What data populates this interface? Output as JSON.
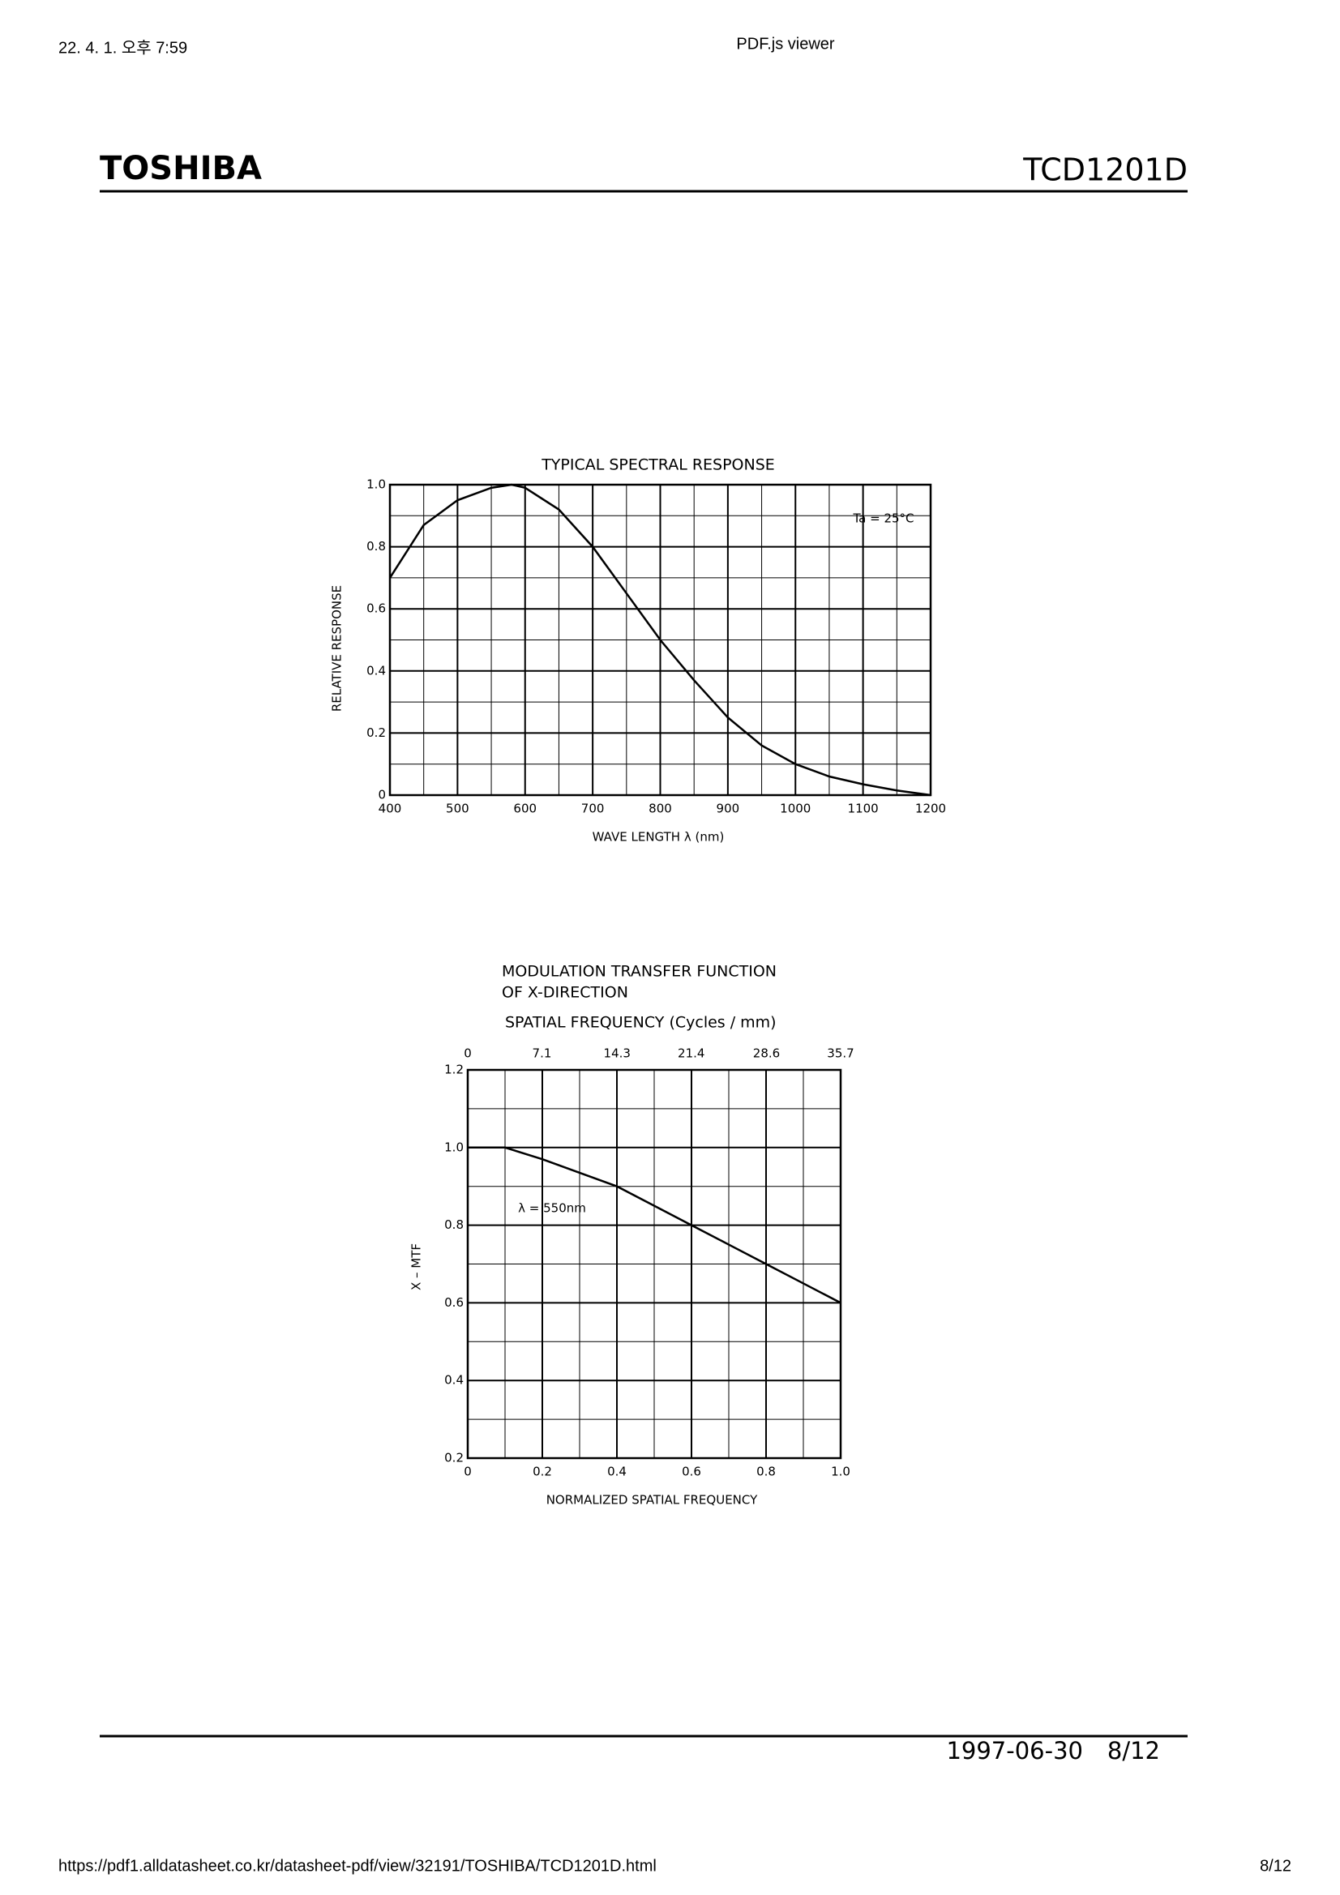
{
  "browser_header": {
    "datetime": "22. 4. 1. 오후 7:59",
    "title": "PDF.js viewer"
  },
  "page_header": {
    "brand": "TOSHIBA",
    "part_number": "TCD1201D"
  },
  "chart_data": [
    {
      "type": "line",
      "title": "TYPICAL SPECTRAL RESPONSE",
      "xlabel": "WAVE LENGTH λ (nm)",
      "ylabel": "RELATIVE RESPONSE",
      "annotation": "Ta = 25°C",
      "x": [
        400,
        450,
        500,
        550,
        580,
        600,
        650,
        700,
        750,
        800,
        850,
        900,
        950,
        1000,
        1050,
        1100,
        1150,
        1200
      ],
      "values": [
        0.7,
        0.87,
        0.95,
        0.99,
        1.0,
        0.99,
        0.92,
        0.8,
        0.65,
        0.5,
        0.37,
        0.25,
        0.16,
        0.1,
        0.06,
        0.035,
        0.015,
        0.0
      ],
      "color": "#000000",
      "xlim": [
        400,
        1200
      ],
      "xticks": [
        400,
        500,
        600,
        700,
        800,
        900,
        1000,
        1100,
        1200
      ],
      "ylim": [
        0,
        1
      ],
      "yticks": [
        0,
        0.2,
        0.4,
        0.6,
        0.8,
        {
          "value": 1,
          "label": "1.0"
        }
      ],
      "grid": true
    },
    {
      "type": "line",
      "title": "MODULATION TRANSFER FUNCTION",
      "subtitle": "OF X-DIRECTION",
      "x2label": "SPATIAL FREQUENCY (Cycles / mm)",
      "xlabel": "NORMALIZED SPATIAL FREQUENCY",
      "ylabel": "X – MTF",
      "annotation": "λ = 550nm",
      "x": [
        0,
        0.1,
        0.2,
        0.3,
        0.4,
        0.5,
        0.6,
        0.7,
        0.8,
        0.9,
        1.0
      ],
      "values": [
        1.0,
        1.0,
        0.97,
        0.935,
        0.9,
        0.85,
        0.8,
        0.75,
        0.7,
        0.65,
        0.6
      ],
      "color": "#000000",
      "xlim": [
        0,
        1
      ],
      "xticks": [
        0,
        0.2,
        0.4,
        0.6,
        0.8,
        {
          "value": 1,
          "label": "1.0"
        }
      ],
      "x2lim": [
        0,
        35.7
      ],
      "x2ticks": [
        0,
        7.1,
        14.3,
        21.4,
        28.6,
        35.7
      ],
      "ylim": [
        0.2,
        1.2
      ],
      "yticks": [
        0.2,
        0.4,
        0.6,
        0.8,
        {
          "value": 1,
          "label": "1.0"
        },
        1.2
      ],
      "grid": true
    }
  ],
  "page_footer": {
    "date": "1997-06-30",
    "page": "8/12"
  },
  "browser_footer": {
    "url": "https://pdf1.alldatasheet.co.kr/datasheet-pdf/view/32191/TOSHIBA/TCD1201D.html",
    "page": "8/12"
  }
}
